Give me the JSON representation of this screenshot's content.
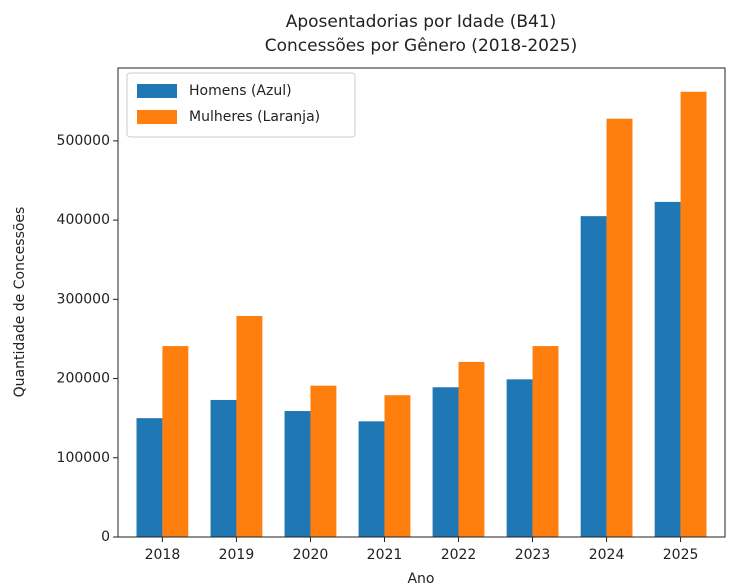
{
  "chart_data": {
    "type": "bar",
    "title": [
      "Aposentadorias por Idade (B41)",
      "Concessões por Gênero (2018-2025)"
    ],
    "x_label": "Ano",
    "y_label": "Quantidade de Concessões",
    "categories": [
      "2018",
      "2019",
      "2020",
      "2021",
      "2022",
      "2023",
      "2024",
      "2025"
    ],
    "series": [
      {
        "name": "Homens (Azul)",
        "color": "#1f77b4",
        "values": [
          150000,
          173000,
          159000,
          146000,
          189000,
          199000,
          405000,
          423000
        ]
      },
      {
        "name": "Mulheres (Laranja)",
        "color": "#ff7f0e",
        "values": [
          241000,
          279000,
          191000,
          179000,
          221000,
          241000,
          528000,
          562000
        ]
      }
    ],
    "ylim": [
      0,
      592000
    ],
    "yticks": [
      0,
      100000,
      200000,
      300000,
      400000,
      500000
    ],
    "grid": false,
    "legend": "upper left"
  }
}
